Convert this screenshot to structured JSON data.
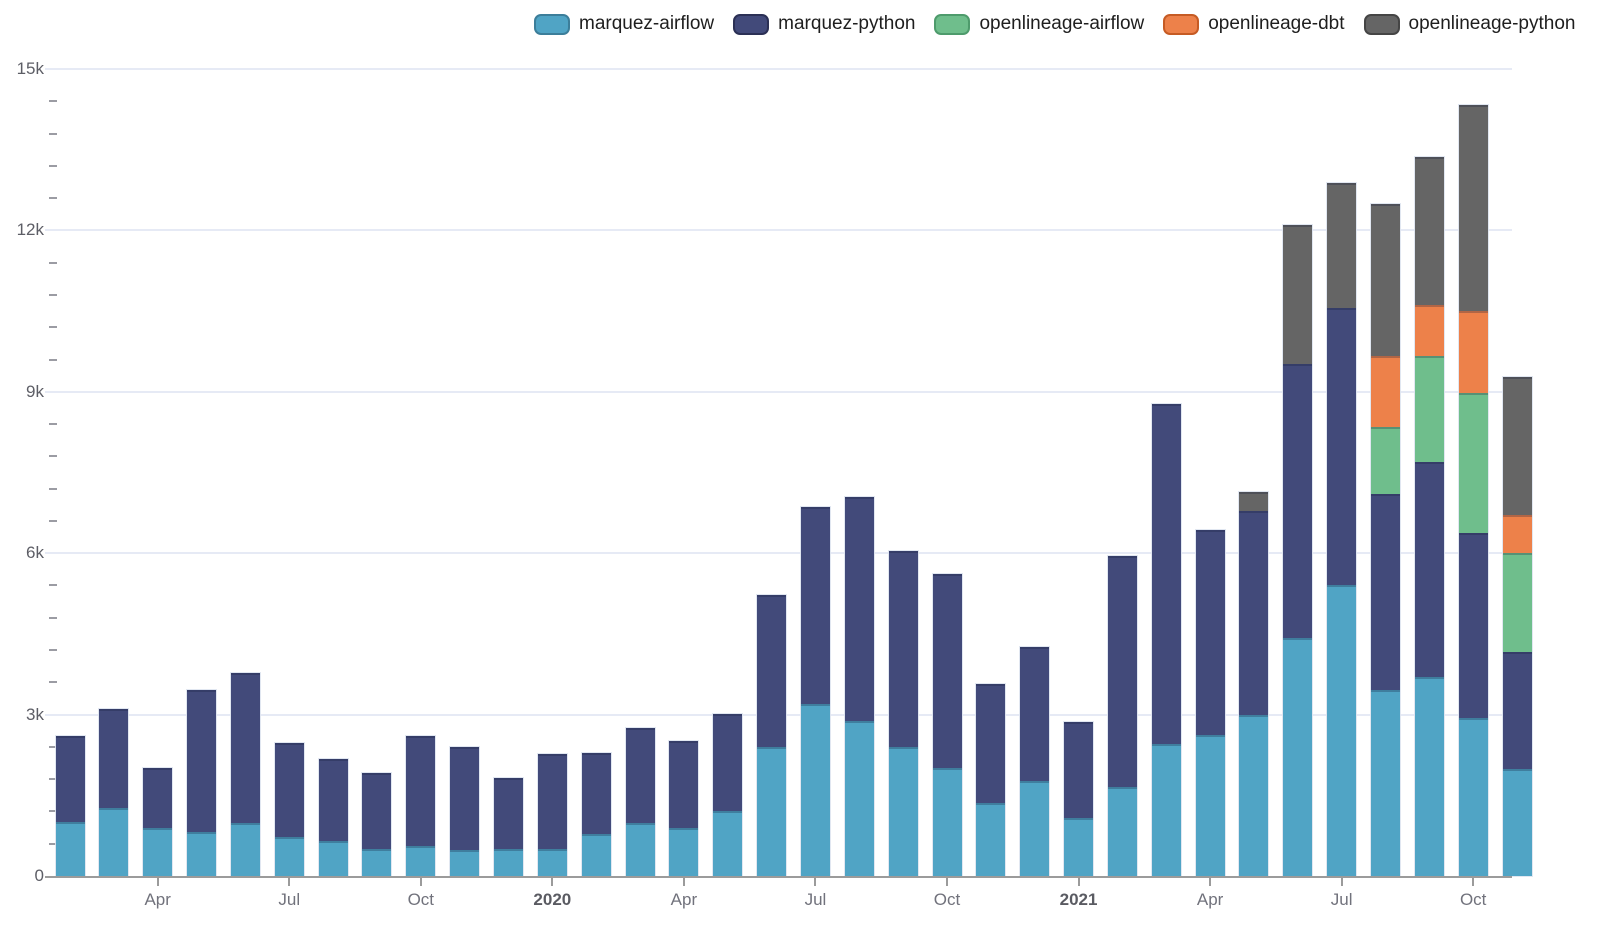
{
  "legend": {
    "items": [
      {
        "label": "marquez-airflow",
        "color": "#50A4C5",
        "border": "#3C7E9A"
      },
      {
        "label": "marquez-python",
        "color": "#424A7A",
        "border": "#2B3055"
      },
      {
        "label": "openlineage-airflow",
        "color": "#6FBE8C",
        "border": "#4E9B6C"
      },
      {
        "label": "openlineage-dbt",
        "color": "#ED814A",
        "border": "#C65B24"
      },
      {
        "label": "openlineage-python",
        "color": "#656565",
        "border": "#454545"
      }
    ]
  },
  "y_axis": {
    "tick_labels": [
      "0",
      "3k",
      "6k",
      "9k",
      "12k",
      "15k"
    ]
  },
  "x_axis": {
    "ticks": [
      {
        "month_index": 2,
        "label": "Apr",
        "bold": false
      },
      {
        "month_index": 5,
        "label": "Jul",
        "bold": false
      },
      {
        "month_index": 8,
        "label": "Oct",
        "bold": false
      },
      {
        "month_index": 11,
        "label": "2020",
        "bold": true
      },
      {
        "month_index": 14,
        "label": "Apr",
        "bold": false
      },
      {
        "month_index": 17,
        "label": "Jul",
        "bold": false
      },
      {
        "month_index": 20,
        "label": "Oct",
        "bold": false
      },
      {
        "month_index": 23,
        "label": "2021",
        "bold": true
      },
      {
        "month_index": 26,
        "label": "Apr",
        "bold": false
      },
      {
        "month_index": 29,
        "label": "Jul",
        "bold": false
      },
      {
        "month_index": 32,
        "label": "Oct",
        "bold": false
      }
    ]
  },
  "chart_data": {
    "type": "bar",
    "stacked": true,
    "title": "",
    "xlabel": "",
    "ylabel": "",
    "ylim": [
      0,
      15000
    ],
    "y_tick_interval": 3000,
    "y_minor_tick_interval": 600,
    "grid": true,
    "legend_position": "top",
    "x": [
      "2019-02",
      "2019-03",
      "2019-04",
      "2019-05",
      "2019-06",
      "2019-07",
      "2019-08",
      "2019-09",
      "2019-10",
      "2019-11",
      "2019-12",
      "2020-01",
      "2020-02",
      "2020-03",
      "2020-04",
      "2020-05",
      "2020-06",
      "2020-07",
      "2020-08",
      "2020-09",
      "2020-10",
      "2020-11",
      "2020-12",
      "2021-01",
      "2021-02",
      "2021-03",
      "2021-04",
      "2021-05",
      "2021-06",
      "2021-07",
      "2021-08",
      "2021-09",
      "2021-10",
      "2021-11"
    ],
    "series": [
      {
        "name": "marquez-airflow",
        "color": "#50A4C5",
        "values": [
          1000,
          1270,
          890,
          810,
          980,
          730,
          650,
          510,
          560,
          480,
          500,
          500,
          780,
          980,
          890,
          1210,
          2390,
          3190,
          2880,
          2400,
          2010,
          1350,
          1770,
          1080,
          1660,
          2450,
          2620,
          3000,
          4430,
          5400,
          3460,
          3690,
          2930,
          1980
        ]
      },
      {
        "name": "marquez-python",
        "color": "#424A7A",
        "values": [
          1600,
          1830,
          1120,
          2650,
          2800,
          1750,
          1520,
          1410,
          2040,
          1910,
          1320,
          1770,
          1510,
          1780,
          1620,
          1800,
          2830,
          3660,
          4170,
          3650,
          3600,
          2220,
          2480,
          1780,
          4290,
          6320,
          3810,
          3790,
          5090,
          5150,
          3640,
          4010,
          3450,
          2180
        ]
      },
      {
        "name": "openlineage-airflow",
        "color": "#6FBE8C",
        "values": [
          0,
          0,
          0,
          0,
          0,
          0,
          0,
          0,
          0,
          0,
          0,
          0,
          0,
          0,
          0,
          0,
          0,
          0,
          0,
          0,
          0,
          0,
          0,
          0,
          0,
          0,
          0,
          0,
          0,
          0,
          1240,
          1970,
          2600,
          1850
        ]
      },
      {
        "name": "openlineage-dbt",
        "color": "#ED814A",
        "values": [
          0,
          0,
          0,
          0,
          0,
          0,
          0,
          0,
          0,
          0,
          0,
          0,
          0,
          0,
          0,
          0,
          0,
          0,
          0,
          0,
          0,
          0,
          0,
          0,
          0,
          0,
          0,
          0,
          0,
          0,
          1330,
          940,
          1520,
          700
        ]
      },
      {
        "name": "openlineage-python",
        "color": "#656565",
        "values": [
          0,
          0,
          0,
          0,
          0,
          0,
          0,
          0,
          0,
          0,
          0,
          0,
          0,
          0,
          0,
          0,
          0,
          0,
          0,
          0,
          0,
          0,
          0,
          0,
          0,
          0,
          0,
          340,
          2580,
          2330,
          2820,
          2760,
          3830,
          2570
        ]
      }
    ]
  }
}
